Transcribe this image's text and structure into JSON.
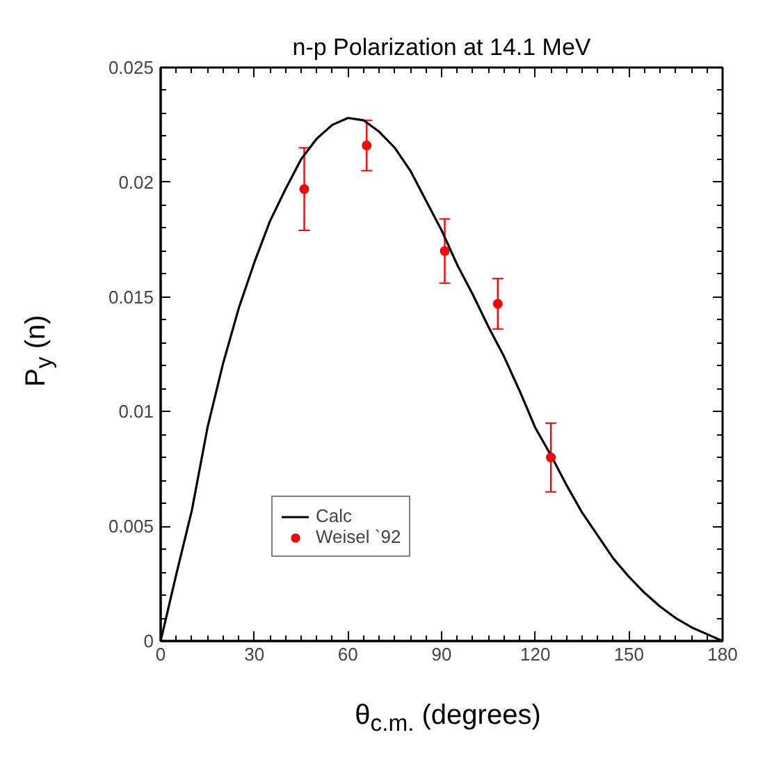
{
  "chart_data": {
    "type": "line",
    "title": "n-p Polarization at 14.1 MeV",
    "xlabel": "θ$_{c.m.}$ (degrees)",
    "ylabel": "P$_{y}$ (n)",
    "xlim": [
      0,
      180
    ],
    "xticks": [
      0,
      30,
      60,
      90,
      120,
      150,
      180
    ],
    "ylim": [
      0,
      0.025
    ],
    "yticks": [
      0,
      0.005,
      0.01,
      0.015,
      0.02,
      0.025
    ],
    "grid": false,
    "legend": "bottom",
    "series": [
      {
        "name": "Calc",
        "color": "#000000",
        "line_style": "solid",
        "marker": "none",
        "x": [
          0,
          5,
          10,
          15,
          20,
          25,
          30,
          35,
          40,
          45,
          50,
          55,
          60,
          65,
          70,
          75,
          80,
          85,
          90,
          95,
          100,
          105,
          110,
          115,
          120,
          125,
          130,
          135,
          140,
          145,
          150,
          155,
          160,
          165,
          170,
          175,
          180
        ],
        "values": [
          0,
          0.0029,
          0.0057,
          0.0093,
          0.0121,
          0.0145,
          0.0165,
          0.0183,
          0.0197,
          0.021,
          0.0219,
          0.0225,
          0.0228,
          0.0227,
          0.0222,
          0.0215,
          0.0205,
          0.0192,
          0.0179,
          0.0164,
          0.0151,
          0.0137,
          0.0124,
          0.0109,
          0.0093,
          0.0081,
          0.0068,
          0.0056,
          0.0046,
          0.0036,
          0.0028,
          0.0021,
          0.0015,
          0.001,
          0.0006,
          0.0003,
          0
        ]
      },
      {
        "name": "Weisel `92",
        "type": "scatter",
        "color": "#ff0000",
        "marker": "circle",
        "x": [
          46,
          66,
          91,
          108,
          125
        ],
        "values": [
          0.0197,
          0.0216,
          0.017,
          0.0147,
          0.008
        ],
        "errors": [
          0.0018,
          0.0011,
          0.0014,
          0.0011,
          0.0015
        ]
      }
    ]
  }
}
